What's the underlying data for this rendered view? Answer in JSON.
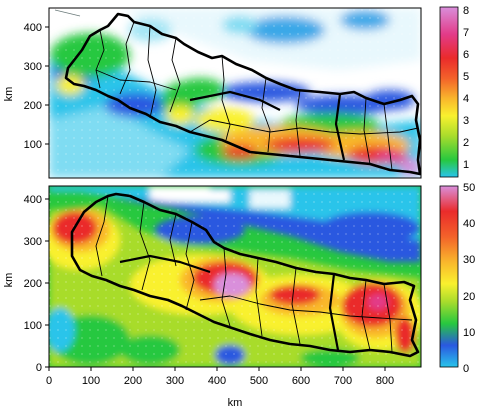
{
  "top_panel": {
    "y_axis_label": "km",
    "y_ticks": [
      {
        "value": 100,
        "label": "100"
      },
      {
        "value": 200,
        "label": "200"
      },
      {
        "value": 300,
        "label": "300"
      },
      {
        "value": 400,
        "label": "400"
      }
    ],
    "y_range": [
      0,
      435
    ],
    "x_range": [
      0,
      880
    ],
    "colorbar": {
      "range": [
        0,
        8
      ],
      "ticks": [
        {
          "value": 1,
          "label": "1"
        },
        {
          "value": 2,
          "label": "2"
        },
        {
          "value": 3,
          "label": "3"
        },
        {
          "value": 4,
          "label": "4"
        },
        {
          "value": 5,
          "label": "5"
        },
        {
          "value": 6,
          "label": "6"
        },
        {
          "value": 7,
          "label": "7"
        },
        {
          "value": 8,
          "label": "8"
        }
      ],
      "colors": [
        "#29c4ea",
        "#27c83f",
        "#a8dc2c",
        "#f9f12e",
        "#f9b72c",
        "#f3622a",
        "#ea2b2b",
        "#e23b89",
        "#d98fdb"
      ]
    }
  },
  "bottom_panel": {
    "y_axis_label": "km",
    "x_axis_label": "km",
    "y_ticks": [
      {
        "value": 0,
        "label": "0"
      },
      {
        "value": 100,
        "label": "100"
      },
      {
        "value": 200,
        "label": "200"
      },
      {
        "value": 300,
        "label": "300"
      },
      {
        "value": 400,
        "label": "400"
      }
    ],
    "x_ticks": [
      {
        "value": 0,
        "label": "0"
      },
      {
        "value": 100,
        "label": "100"
      },
      {
        "value": 200,
        "label": "200"
      },
      {
        "value": 300,
        "label": "300"
      },
      {
        "value": 400,
        "label": "400"
      },
      {
        "value": 500,
        "label": "500"
      },
      {
        "value": 600,
        "label": "600"
      },
      {
        "value": 700,
        "label": "700"
      },
      {
        "value": 800,
        "label": "800"
      }
    ],
    "y_range": [
      0,
      435
    ],
    "x_range": [
      0,
      880
    ],
    "colorbar": {
      "range": [
        0,
        50
      ],
      "ticks": [
        {
          "value": 0,
          "label": "0"
        },
        {
          "value": 10,
          "label": "10"
        },
        {
          "value": 20,
          "label": "20"
        },
        {
          "value": 30,
          "label": "30"
        },
        {
          "value": 40,
          "label": "40"
        },
        {
          "value": 50,
          "label": "50"
        }
      ],
      "colors": [
        "#29c4ea",
        "#2a58e0",
        "#27c83f",
        "#a8dc2c",
        "#f9f12e",
        "#f9b72c",
        "#f3622a",
        "#ea2b2b",
        "#d98fdb"
      ]
    }
  },
  "legend_colors": {
    "white": "#ffffff",
    "cyan": "#29c4ea",
    "blue": "#2a58e0",
    "green": "#27c83f",
    "yellow": "#f9f12e",
    "orange": "#f9b72c",
    "red": "#ea2b2b",
    "magenta": "#d98fdb"
  }
}
